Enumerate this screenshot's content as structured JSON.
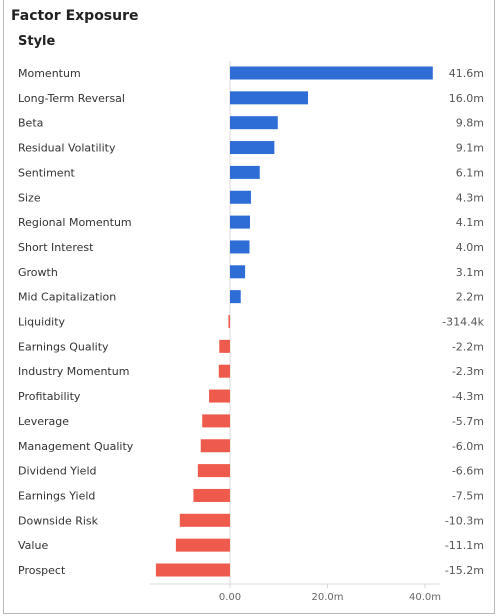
{
  "header": {
    "title": "Factor Exposure",
    "subtitle": "Style"
  },
  "colors": {
    "positive": "#2e6dd6",
    "negative": "#ee5a4c",
    "axis": "#d8d8d8"
  },
  "chart_data": {
    "type": "bar",
    "orientation": "horizontal",
    "title": "",
    "xlabel": "",
    "ylabel": "",
    "xlim": [
      -16,
      42.5
    ],
    "grid": false,
    "legend": "none",
    "x_ticks": [
      {
        "value": 0,
        "label": "0.00"
      },
      {
        "value": 20,
        "label": "20.0m"
      },
      {
        "value": 40,
        "label": "40.0m"
      }
    ],
    "categories": [
      "Momentum",
      "Long-Term Reversal",
      "Beta",
      "Residual Volatility",
      "Sentiment",
      "Size",
      "Regional Momentum",
      "Short Interest",
      "Growth",
      "Mid Capitalization",
      "Liquidity",
      "Earnings Quality",
      "Industry Momentum",
      "Profitability",
      "Leverage",
      "Management Quality",
      "Dividend Yield",
      "Earnings Yield",
      "Downside Risk",
      "Value",
      "Prospect"
    ],
    "values": [
      41.6,
      16.0,
      9.8,
      9.1,
      6.1,
      4.3,
      4.1,
      4.0,
      3.1,
      2.2,
      -0.3144,
      -2.2,
      -2.3,
      -4.3,
      -5.7,
      -6.0,
      -6.6,
      -7.5,
      -10.3,
      -11.1,
      -15.2
    ],
    "value_labels": [
      "41.6m",
      "16.0m",
      "9.8m",
      "9.1m",
      "6.1m",
      "4.3m",
      "4.1m",
      "4.0m",
      "3.1m",
      "2.2m",
      "-314.4k",
      "-2.2m",
      "-2.3m",
      "-4.3m",
      "-5.7m",
      "-6.0m",
      "-6.6m",
      "-7.5m",
      "-10.3m",
      "-11.1m",
      "-15.2m"
    ]
  }
}
